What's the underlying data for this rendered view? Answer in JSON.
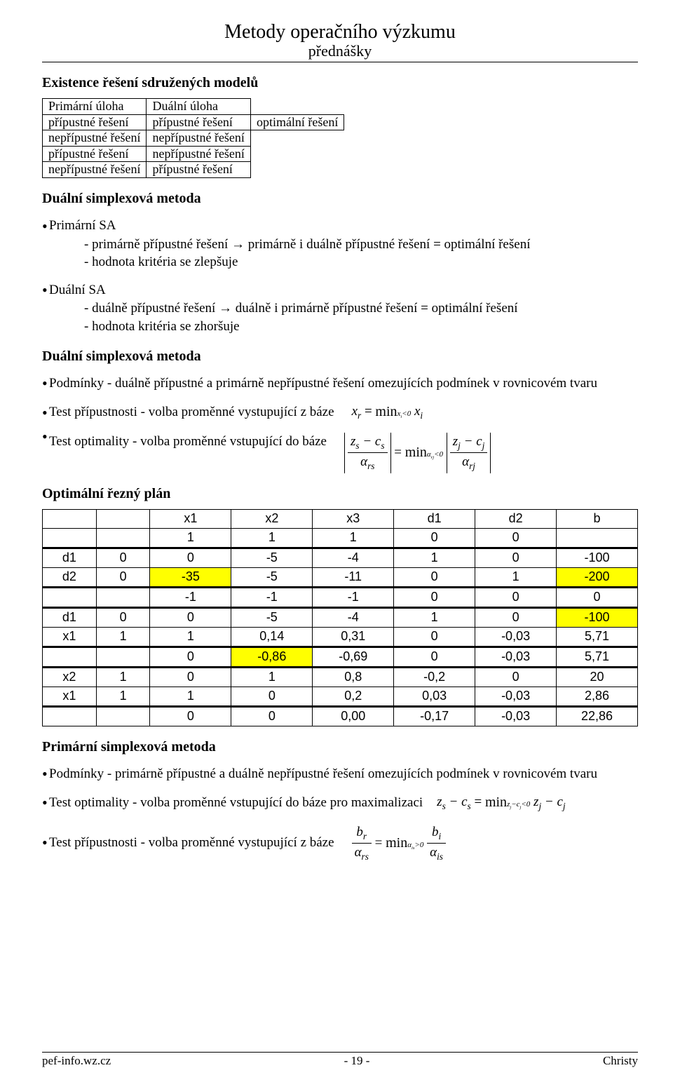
{
  "header": {
    "title": "Metody operačního výzkumu",
    "subtitle": "přednášky"
  },
  "h1": "Existence řešení sdružených modelů",
  "table1": {
    "h1": "Primární úloha",
    "h2": "Duální úloha",
    "r1c1": "přípustné řešení",
    "r1c2": "přípustné řešení",
    "r1c3": "optimální řešení",
    "r2c1": "nepřípustné řešení",
    "r2c2": "nepřípustné řešení",
    "r3c1": "přípustné řešení",
    "r3c2": "nepřípustné řešení",
    "r4c1": "nepřípustné řešení",
    "r4c2": "přípustné řešení"
  },
  "h2": "Duální simplexová metoda",
  "primSA": {
    "title": "Primární SA",
    "l1": "- primárně přípustné řešení → primárně i duálně přípustné řešení = optimální řešení",
    "l2": "- hodnota kritéria se zlepšuje"
  },
  "dualSA": {
    "title": "Duální SA",
    "l1": "- duálně přípustné řešení → duálně i primárně přípustné řešení = optimální řešení",
    "l2": "- hodnota kritéria se zhoršuje"
  },
  "h3": "Duální simplexová metoda",
  "cond1": "Podmínky - duálně přípustné a primárně nepřípustné řešení omezujících podmínek v rovnicovém tvaru",
  "test1": "Test přípustnosti - volba proměnné vystupující z báze",
  "test2": "Test optimality - volba proměnné vstupující do báze",
  "h4": "Optimální řezný plán",
  "big": {
    "hdr": [
      "",
      "",
      "x1",
      "x2",
      "x3",
      "d1",
      "d2",
      "b"
    ],
    "rows": [
      {
        "cells": [
          "",
          "",
          "1",
          "1",
          "1",
          "0",
          "0",
          ""
        ],
        "hl": [],
        "thick": false
      },
      {
        "cells": [
          "d1",
          "0",
          "0",
          "-5",
          "-4",
          "1",
          "0",
          "-100"
        ],
        "hl": [],
        "thick": true
      },
      {
        "cells": [
          "d2",
          "0",
          "-35",
          "-5",
          "-11",
          "0",
          "1",
          "-200"
        ],
        "hl": [
          2,
          7
        ],
        "thick": false
      },
      {
        "cells": [
          "",
          "",
          "-1",
          "-1",
          "-1",
          "0",
          "0",
          "0"
        ],
        "hl": [],
        "thick": true
      },
      {
        "cells": [
          "d1",
          "0",
          "0",
          "-5",
          "-4",
          "1",
          "0",
          "-100"
        ],
        "hl": [
          7
        ],
        "thick": true
      },
      {
        "cells": [
          "x1",
          "1",
          "1",
          "0,14",
          "0,31",
          "0",
          "-0,03",
          "5,71"
        ],
        "hl": [],
        "thick": false
      },
      {
        "cells": [
          "",
          "",
          "0",
          "-0,86",
          "-0,69",
          "0",
          "-0,03",
          "5,71"
        ],
        "hl": [
          3
        ],
        "thick": true
      },
      {
        "cells": [
          "x2",
          "1",
          "0",
          "1",
          "0,8",
          "-0,2",
          "0",
          "20"
        ],
        "hl": [],
        "thick": true
      },
      {
        "cells": [
          "x1",
          "1",
          "1",
          "0",
          "0,2",
          "0,03",
          "-0,03",
          "2,86"
        ],
        "hl": [],
        "thick": false
      },
      {
        "cells": [
          "",
          "",
          "0",
          "0",
          "0,00",
          "-0,17",
          "-0,03",
          "22,86"
        ],
        "hl": [],
        "thick": true
      }
    ]
  },
  "h5": "Primární simplexová metoda",
  "cond2": "Podmínky - primárně přípustné a duálně nepřípustné řešení omezujících podmínek v rovnicovém tvaru",
  "test3": "Test optimality - volba proměnné vstupující do báze pro maximalizaci",
  "test4": "Test přípustnosti - volba proměnné vystupující z báze",
  "footer": {
    "left": "pef-info.wz.cz",
    "mid": "- 19 -",
    "right": "Christy"
  }
}
